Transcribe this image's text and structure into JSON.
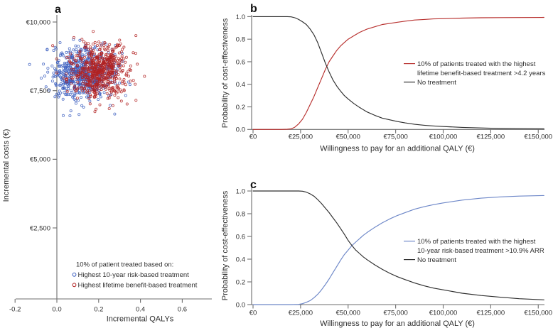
{
  "figure": {
    "background": "#ffffff",
    "axis_color": "#6e6e6e",
    "text_color": "#2e2e2e"
  },
  "chart_data": [
    {
      "id": "a",
      "type": "scatter",
      "panel_label": "a",
      "xlabel": "Incremental QALYs",
      "ylabel": "Incremental costs (€)",
      "xlim": [
        -0.28,
        0.74
      ],
      "ylim": [
        -100,
        10350
      ],
      "x_ticks": [
        {
          "v": -0.2,
          "label": "-0.2"
        },
        {
          "v": 0.0,
          "label": "0.0"
        },
        {
          "v": 0.2,
          "label": "0.2"
        },
        {
          "v": 0.4,
          "label": "0.4"
        },
        {
          "v": 0.6,
          "label": "0.6"
        }
      ],
      "y_ticks": [
        {
          "v": 2500,
          "label": "€2,500"
        },
        {
          "v": 5000,
          "label": "€5,000"
        },
        {
          "v": 7500,
          "label": "€7,500"
        },
        {
          "v": 10000,
          "label": "€10,000"
        }
      ],
      "legend_title": "10% of patient treated based on:",
      "series": [
        {
          "name": "Highest 10-year risk-based treatment",
          "marker": "open-circle",
          "color": "#3c5fc0",
          "n": 600,
          "mean_qaly": 0.125,
          "sd_qaly": 0.078,
          "mean_cost": 8150,
          "sd_cost": 500,
          "seed": 42
        },
        {
          "name": "Highest lifetime benefit-based treatment",
          "marker": "open-circle",
          "color": "#b22222",
          "n": 600,
          "mean_qaly": 0.205,
          "sd_qaly": 0.068,
          "mean_cost": 8250,
          "sd_cost": 480,
          "seed": 137
        }
      ]
    },
    {
      "id": "b",
      "type": "line",
      "panel_label": "b",
      "xlabel": "Willingness to pay for an additional QALY (€)",
      "ylabel": "Probability of cost-effectiveness",
      "x_unit_note": "x values in thousands of euros",
      "xlim": [
        0,
        155
      ],
      "ylim": [
        0,
        1
      ],
      "x_ticks": [
        {
          "v": 0,
          "label": "€0"
        },
        {
          "v": 25,
          "label": "€25,000"
        },
        {
          "v": 50,
          "label": "€50,000"
        },
        {
          "v": 75,
          "label": "€75,000"
        },
        {
          "v": 100,
          "label": "€100,000"
        },
        {
          "v": 125,
          "label": "€125,000"
        },
        {
          "v": 150,
          "label": "€150,000"
        }
      ],
      "y_ticks": [
        {
          "v": 0.0,
          "label": "0.0"
        },
        {
          "v": 0.2,
          "label": "0.2"
        },
        {
          "v": 0.4,
          "label": "0.4"
        },
        {
          "v": 0.6,
          "label": "0.6"
        },
        {
          "v": 0.8,
          "label": "0.8"
        },
        {
          "v": 1.0,
          "label": "1.0"
        }
      ],
      "series": [
        {
          "name": "10% of patients treated with the highest lifetime benefit-based treatment >4.2 years",
          "legend_lines": [
            "10% of patients treated with the highest",
            "lifetime benefit-based treatment >4.2 years"
          ],
          "color": "#b8312f",
          "points": [
            [
              0,
              0
            ],
            [
              10,
              0
            ],
            [
              15,
              0
            ],
            [
              18,
              0.002
            ],
            [
              20,
              0.005
            ],
            [
              22,
              0.02
            ],
            [
              24,
              0.05
            ],
            [
              26,
              0.09
            ],
            [
              28,
              0.15
            ],
            [
              30,
              0.22
            ],
            [
              32,
              0.29
            ],
            [
              34,
              0.37
            ],
            [
              36,
              0.45
            ],
            [
              38,
              0.53
            ],
            [
              40,
              0.6
            ],
            [
              42,
              0.65
            ],
            [
              44,
              0.7
            ],
            [
              46,
              0.74
            ],
            [
              48,
              0.77
            ],
            [
              50,
              0.8
            ],
            [
              53,
              0.83
            ],
            [
              56,
              0.86
            ],
            [
              60,
              0.89
            ],
            [
              64,
              0.91
            ],
            [
              68,
              0.93
            ],
            [
              72,
              0.94
            ],
            [
              76,
              0.95
            ],
            [
              80,
              0.96
            ],
            [
              85,
              0.97
            ],
            [
              90,
              0.975
            ],
            [
              95,
              0.98
            ],
            [
              100,
              0.982
            ],
            [
              110,
              0.987
            ],
            [
              120,
              0.99
            ],
            [
              130,
              0.991
            ],
            [
              140,
              0.992
            ],
            [
              153,
              0.993
            ]
          ]
        },
        {
          "name": "No treatment",
          "legend_lines": [
            "No treatment"
          ],
          "color": "#2e2e2e",
          "points": [
            [
              0,
              1
            ],
            [
              10,
              1
            ],
            [
              15,
              1
            ],
            [
              18,
              1
            ],
            [
              20,
              0.998
            ],
            [
              22,
              0.99
            ],
            [
              24,
              0.975
            ],
            [
              26,
              0.955
            ],
            [
              28,
              0.93
            ],
            [
              30,
              0.89
            ],
            [
              32,
              0.84
            ],
            [
              34,
              0.77
            ],
            [
              36,
              0.68
            ],
            [
              38,
              0.59
            ],
            [
              40,
              0.51
            ],
            [
              42,
              0.44
            ],
            [
              44,
              0.385
            ],
            [
              46,
              0.34
            ],
            [
              48,
              0.3
            ],
            [
              50,
              0.27
            ],
            [
              53,
              0.23
            ],
            [
              56,
              0.195
            ],
            [
              60,
              0.155
            ],
            [
              64,
              0.125
            ],
            [
              68,
              0.1
            ],
            [
              72,
              0.085
            ],
            [
              76,
              0.07
            ],
            [
              80,
              0.058
            ],
            [
              85,
              0.045
            ],
            [
              90,
              0.037
            ],
            [
              95,
              0.031
            ],
            [
              100,
              0.026
            ],
            [
              110,
              0.018
            ],
            [
              120,
              0.013
            ],
            [
              130,
              0.009
            ],
            [
              140,
              0.007
            ],
            [
              153,
              0.005
            ]
          ]
        }
      ]
    },
    {
      "id": "c",
      "type": "line",
      "panel_label": "c",
      "xlabel": "Willingness to pay for an additional QALY (€)",
      "ylabel": "Probability of cost-effectiveness",
      "x_unit_note": "x values in thousands of euros",
      "xlim": [
        0,
        155
      ],
      "ylim": [
        0,
        1
      ],
      "x_ticks": [
        {
          "v": 0,
          "label": "€0"
        },
        {
          "v": 25,
          "label": "€25,000"
        },
        {
          "v": 50,
          "label": "€50,000"
        },
        {
          "v": 75,
          "label": "€75,000"
        },
        {
          "v": 100,
          "label": "€100,000"
        },
        {
          "v": 125,
          "label": "€125,000"
        },
        {
          "v": 150,
          "label": "€150,000"
        }
      ],
      "y_ticks": [
        {
          "v": 0.0,
          "label": "0.0"
        },
        {
          "v": 0.2,
          "label": "0.2"
        },
        {
          "v": 0.4,
          "label": "0.4"
        },
        {
          "v": 0.6,
          "label": "0.6"
        },
        {
          "v": 0.8,
          "label": "0.8"
        },
        {
          "v": 1.0,
          "label": "1.0"
        }
      ],
      "series": [
        {
          "name": "10% of patients treated with the highest 10-year risk-based treatment >10.9% ARR",
          "legend_lines": [
            "10% of patients treated with the highest",
            "10-year risk-based treatment >10.9% ARR"
          ],
          "color": "#6d87c8",
          "points": [
            [
              0,
              0
            ],
            [
              15,
              0
            ],
            [
              20,
              0
            ],
            [
              24,
              0.002
            ],
            [
              26,
              0.008
            ],
            [
              28,
              0.02
            ],
            [
              30,
              0.035
            ],
            [
              32,
              0.06
            ],
            [
              34,
              0.09
            ],
            [
              36,
              0.13
            ],
            [
              38,
              0.175
            ],
            [
              40,
              0.225
            ],
            [
              42,
              0.28
            ],
            [
              44,
              0.335
            ],
            [
              46,
              0.39
            ],
            [
              48,
              0.44
            ],
            [
              50,
              0.48
            ],
            [
              52,
              0.52
            ],
            [
              54,
              0.55
            ],
            [
              56,
              0.58
            ],
            [
              58,
              0.61
            ],
            [
              60,
              0.635
            ],
            [
              64,
              0.68
            ],
            [
              68,
              0.72
            ],
            [
              72,
              0.755
            ],
            [
              76,
              0.785
            ],
            [
              80,
              0.81
            ],
            [
              85,
              0.84
            ],
            [
              90,
              0.862
            ],
            [
              95,
              0.88
            ],
            [
              100,
              0.895
            ],
            [
              110,
              0.92
            ],
            [
              120,
              0.937
            ],
            [
              130,
              0.948
            ],
            [
              140,
              0.955
            ],
            [
              153,
              0.96
            ]
          ]
        },
        {
          "name": "No treatment",
          "legend_lines": [
            "No treatment"
          ],
          "color": "#2e2e2e",
          "points": [
            [
              0,
              1
            ],
            [
              15,
              1
            ],
            [
              20,
              1
            ],
            [
              24,
              1
            ],
            [
              26,
              0.998
            ],
            [
              28,
              0.99
            ],
            [
              30,
              0.975
            ],
            [
              32,
              0.955
            ],
            [
              34,
              0.925
            ],
            [
              36,
              0.89
            ],
            [
              38,
              0.85
            ],
            [
              40,
              0.81
            ],
            [
              42,
              0.765
            ],
            [
              44,
              0.72
            ],
            [
              46,
              0.67
            ],
            [
              48,
              0.62
            ],
            [
              50,
              0.565
            ],
            [
              52,
              0.52
            ],
            [
              54,
              0.48
            ],
            [
              56,
              0.45
            ],
            [
              58,
              0.42
            ],
            [
              60,
              0.395
            ],
            [
              64,
              0.35
            ],
            [
              68,
              0.31
            ],
            [
              72,
              0.275
            ],
            [
              76,
              0.245
            ],
            [
              80,
              0.22
            ],
            [
              85,
              0.19
            ],
            [
              90,
              0.165
            ],
            [
              95,
              0.145
            ],
            [
              100,
              0.13
            ],
            [
              110,
              0.1
            ],
            [
              120,
              0.08
            ],
            [
              130,
              0.065
            ],
            [
              140,
              0.052
            ],
            [
              153,
              0.042
            ]
          ]
        }
      ]
    }
  ]
}
